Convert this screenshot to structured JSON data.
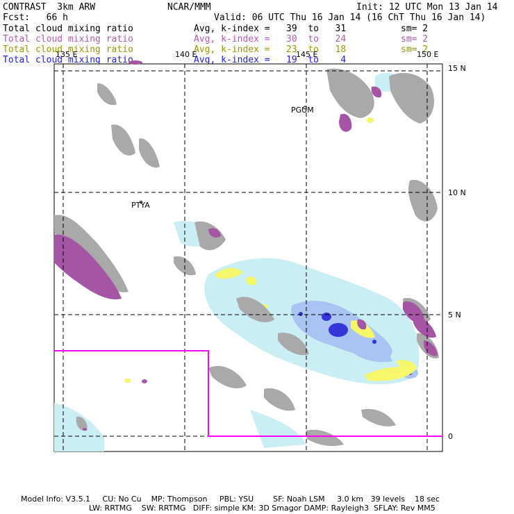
{
  "header": {
    "model": "CONTRAST  3km ARW",
    "center": "NCAR/MMM",
    "init": "Init: 12 UTC Mon 13 Jan 14",
    "fcst": "Fcst:   66 h",
    "valid": "Valid: 06 UTC Thu 16 Jan 14 (16 ChT Thu 16 Jan 14)"
  },
  "fields": [
    {
      "name": "Total cloud mixing ratio",
      "index": "Avg, k-index =   39  to   31",
      "smooth": "sm= 2",
      "color": "#000000"
    },
    {
      "name": "Total cloud mixing ratio",
      "index": "Avg, k-index =   30  to   24",
      "smooth": "sm= 2",
      "color": "#b259b2"
    },
    {
      "name": "Total cloud mixing ratio",
      "index": "Avg, k-index =   23  to   18",
      "smooth": "sm= 2",
      "color": "#9a9a00"
    },
    {
      "name": "Total cloud mixing ratio",
      "index": "Avg, k-index =   19  to    4",
      "smooth": "",
      "color": "#1d1de0"
    }
  ],
  "map": {
    "lon_labels": [
      "135 E",
      "140 E",
      "145 E",
      "150 E"
    ],
    "lat_labels": [
      "15 N",
      "10 N",
      "5 N",
      "0"
    ],
    "stations": [
      "PGUM",
      "PTYA"
    ],
    "colors": {
      "high_cloud": "#a9a9a9",
      "mid_high_cloud": "#a455a4",
      "mid_cloud": "#f7f76a",
      "low_cloud_light": "#c9eef4",
      "low_cloud_mid": "#a9c4f2",
      "low_cloud_deep": "#3535d8",
      "domain_box": "#ff00ff"
    }
  },
  "footer": {
    "line1": "Model Info: V3.5.1     CU: No Cu    MP: Thompson     PBL: YSU        SF: Noah LSM     3.0 km   39 levels    18 sec",
    "line2": "LW: RRTMG    SW: RRTMG   DIFF: simple KM: 3D Smagor DAMP: Rayleigh3  SFLAY: Rev MM5"
  }
}
